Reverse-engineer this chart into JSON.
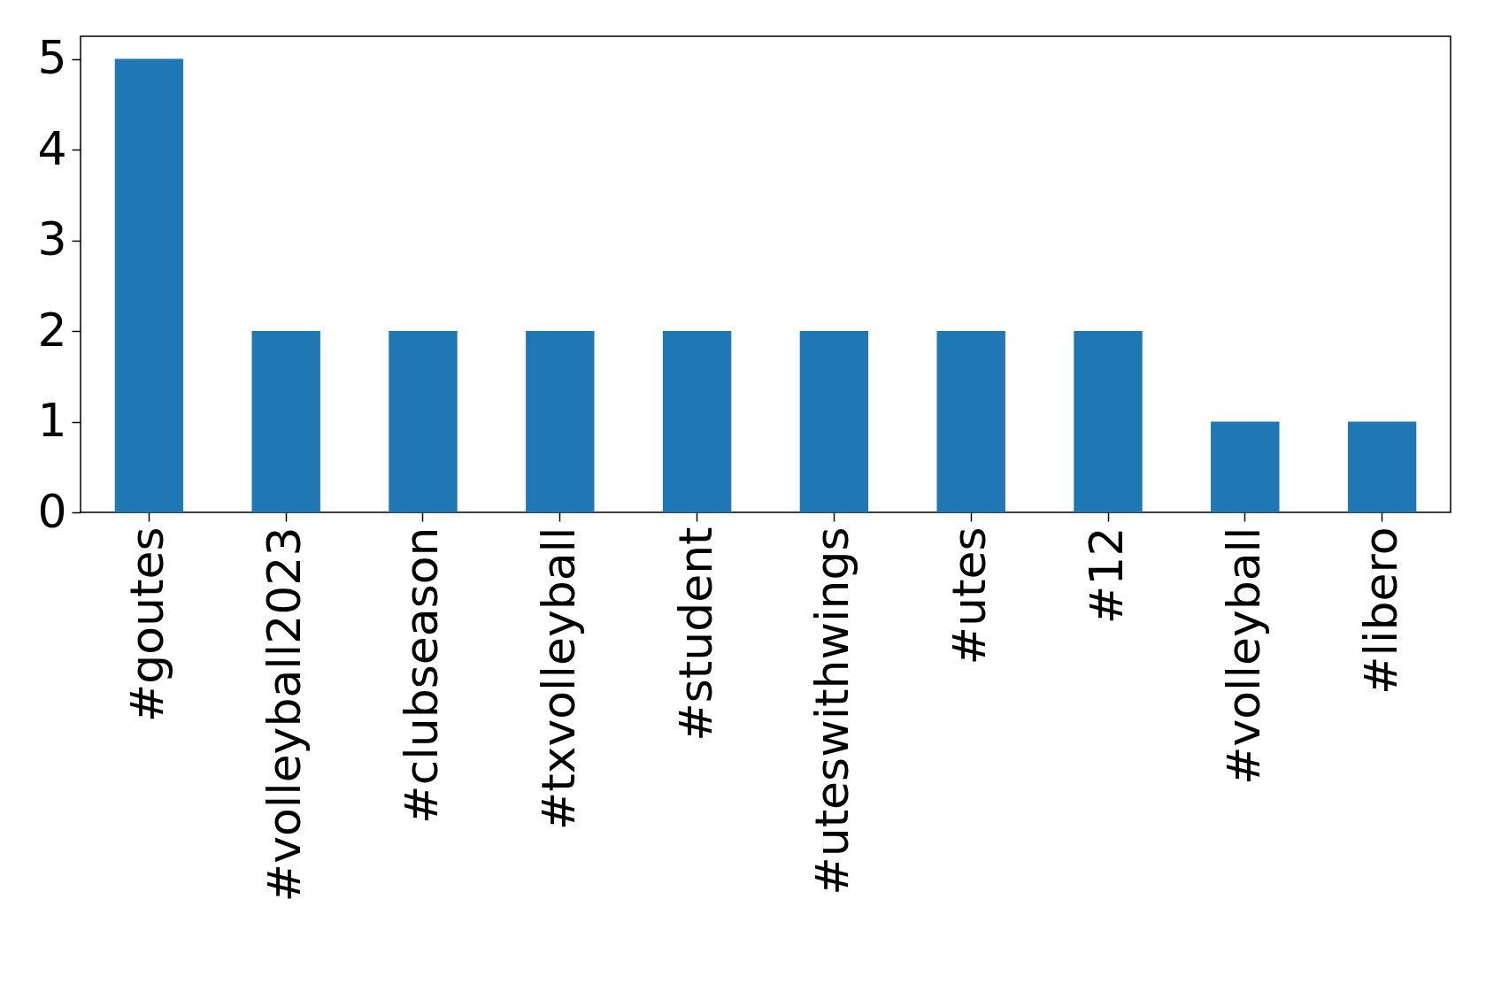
{
  "chart_data": {
    "type": "bar",
    "categories": [
      "#goutes",
      "#volleyball2023",
      "#clubseason",
      "#txvolleyball",
      "#student",
      "#uteswithwings",
      "#utes",
      "#12",
      "#volleyball",
      "#libero"
    ],
    "values": [
      5,
      2,
      2,
      2,
      2,
      2,
      2,
      2,
      1,
      1
    ],
    "color": "#1f77b4",
    "ylim": [
      0,
      5.25
    ],
    "yticks": [
      0,
      1,
      2,
      3,
      4,
      5
    ],
    "grid": false
  }
}
